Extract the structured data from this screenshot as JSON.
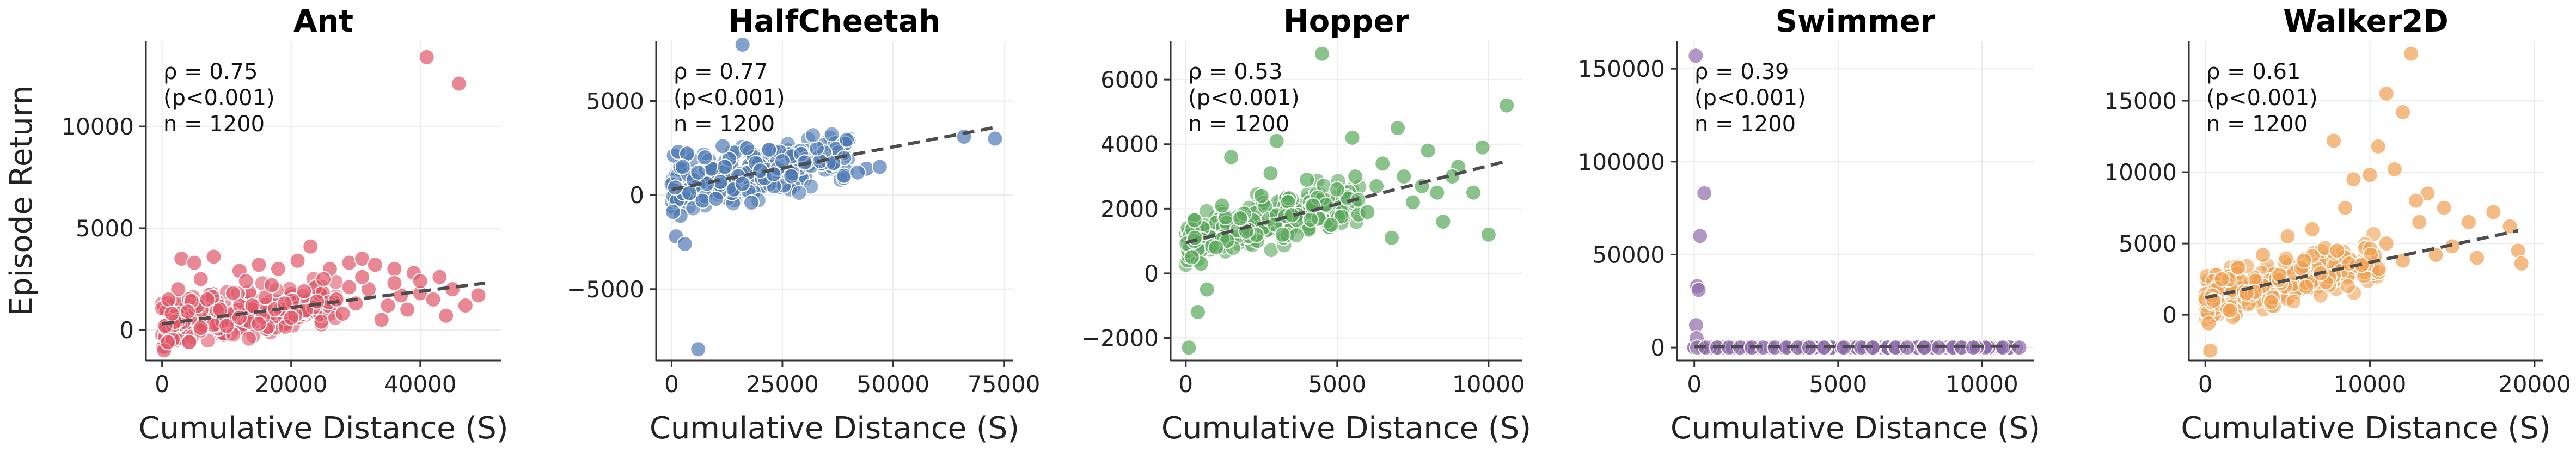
{
  "chart_data": [
    {
      "type": "scatter",
      "title": "Ant",
      "xlabel": "Cumulative Distance (S)",
      "ylabel": "Episode Return",
      "xlim": [
        -2500,
        52500
      ],
      "ylim": [
        -1500,
        14200
      ],
      "xticks": [
        0,
        20000,
        40000
      ],
      "xtick_labels": [
        "0",
        "20000",
        "40000"
      ],
      "yticks": [
        0,
        5000,
        10000
      ],
      "ytick_labels": [
        "0",
        "5000",
        "10000"
      ],
      "stats": [
        "ρ = 0.75",
        "(p<0.001)",
        "n = 1200"
      ],
      "color": "#e05566",
      "fit": [
        [
          0,
          300
        ],
        [
          50000,
          2300
        ]
      ],
      "points": [
        [
          41000,
          13400
        ],
        [
          46000,
          12100
        ],
        [
          300,
          -1000
        ],
        [
          900,
          -600
        ],
        [
          3000,
          3500
        ],
        [
          5000,
          3300
        ],
        [
          8000,
          3600
        ],
        [
          12000,
          2900
        ],
        [
          15000,
          3200
        ],
        [
          18000,
          3000
        ],
        [
          21000,
          3400
        ],
        [
          23000,
          4100
        ],
        [
          26000,
          3000
        ],
        [
          29000,
          3300
        ],
        [
          31000,
          3500
        ],
        [
          33000,
          3200
        ],
        [
          36000,
          3000
        ],
        [
          39000,
          2800
        ],
        [
          43000,
          2600
        ],
        [
          45000,
          2000
        ],
        [
          47000,
          1200
        ],
        [
          49000,
          1700
        ],
        [
          44000,
          700
        ],
        [
          34000,
          500
        ],
        [
          28000,
          800
        ],
        [
          20000,
          600
        ],
        [
          15000,
          300
        ],
        [
          10000,
          200
        ],
        [
          6000,
          100
        ],
        [
          2000,
          400
        ],
        [
          2500,
          2000
        ],
        [
          7000,
          1500
        ],
        [
          11000,
          1800
        ],
        [
          16000,
          1600
        ],
        [
          22000,
          1900
        ],
        [
          27000,
          1500
        ],
        [
          32000,
          2000
        ],
        [
          37000,
          1700
        ],
        [
          40000,
          1800
        ],
        [
          42000,
          1500
        ],
        [
          4000,
          900
        ],
        [
          9000,
          1000
        ],
        [
          14000,
          1200
        ],
        [
          19000,
          1300
        ],
        [
          24000,
          1400
        ],
        [
          30000,
          1300
        ],
        [
          35000,
          1200
        ],
        [
          38000,
          1000
        ],
        [
          1000,
          1500
        ],
        [
          13000,
          2400
        ],
        [
          25000,
          2500
        ],
        [
          17000,
          2200
        ],
        [
          31000,
          2600
        ],
        [
          36000,
          2300
        ],
        [
          500,
          200
        ],
        [
          1500,
          800
        ],
        [
          6000,
          2500
        ],
        [
          40000,
          2400
        ],
        [
          29000,
          2100
        ],
        [
          12000,
          600
        ]
      ]
    },
    {
      "type": "scatter",
      "title": "HalfCheetah",
      "xlabel": "Cumulative Distance (S)",
      "ylabel": "",
      "xlim": [
        -3500,
        77000
      ],
      "ylim": [
        -8800,
        8200
      ],
      "xticks": [
        0,
        25000,
        50000,
        75000
      ],
      "xtick_labels": [
        "0",
        "25000",
        "50000",
        "75000"
      ],
      "yticks": [
        -5000,
        0,
        5000
      ],
      "ytick_labels": [
        "−5000",
        "0",
        "5000"
      ],
      "stats": [
        "ρ = 0.77",
        "(p<0.001)",
        "n = 1200"
      ],
      "color": "#4e79b4",
      "fit": [
        [
          0,
          300
        ],
        [
          73000,
          3600
        ]
      ],
      "points": [
        [
          6000,
          -8200
        ],
        [
          73000,
          3000
        ],
        [
          66000,
          3100
        ],
        [
          44000,
          1400
        ],
        [
          47000,
          1500
        ],
        [
          42000,
          1200
        ],
        [
          27000,
          1000
        ],
        [
          25000,
          1800
        ],
        [
          16000,
          8000
        ],
        [
          1000,
          -2200
        ],
        [
          2000,
          -1100
        ],
        [
          3000,
          -2600
        ],
        [
          500,
          2100
        ],
        [
          1500,
          2300
        ],
        [
          3500,
          2200
        ],
        [
          5000,
          800
        ],
        [
          7000,
          -300
        ],
        [
          9000,
          1400
        ],
        [
          11000,
          700
        ],
        [
          13000,
          1900
        ],
        [
          15000,
          1000
        ],
        [
          17000,
          2500
        ],
        [
          19000,
          1700
        ],
        [
          21000,
          900
        ],
        [
          22000,
          2400
        ],
        [
          18000,
          -400
        ],
        [
          14000,
          300
        ],
        [
          10000,
          -200
        ],
        [
          8000,
          600
        ],
        [
          6000,
          1200
        ],
        [
          4000,
          100
        ],
        [
          12000,
          1500
        ],
        [
          16000,
          600
        ],
        [
          20000,
          1300
        ],
        [
          23000,
          1100
        ],
        [
          2500,
          1500
        ],
        [
          7500,
          2000
        ],
        [
          11500,
          2600
        ],
        [
          300,
          -900
        ],
        [
          800,
          400
        ]
      ]
    },
    {
      "type": "scatter",
      "title": "Hopper",
      "xlabel": "Cumulative Distance (S)",
      "ylabel": "",
      "xlim": [
        -500,
        11100
      ],
      "ylim": [
        -2700,
        7200
      ],
      "xticks": [
        0,
        5000,
        10000
      ],
      "xtick_labels": [
        "0",
        "5000",
        "10000"
      ],
      "yticks": [
        -2000,
        0,
        2000,
        4000,
        6000
      ],
      "ytick_labels": [
        "−2000",
        "0",
        "2000",
        "4000",
        "6000"
      ],
      "stats": [
        "ρ = 0.53",
        "(p<0.001)",
        "n = 1200"
      ],
      "color": "#59a85a",
      "fit": [
        [
          0,
          950
        ],
        [
          10500,
          3450
        ]
      ],
      "points": [
        [
          4500,
          6800
        ],
        [
          10600,
          5200
        ],
        [
          100,
          -2300
        ],
        [
          400,
          -1200
        ],
        [
          1500,
          3600
        ],
        [
          3000,
          4100
        ],
        [
          5500,
          4200
        ],
        [
          6500,
          3400
        ],
        [
          7000,
          4500
        ],
        [
          8000,
          3800
        ],
        [
          9000,
          3300
        ],
        [
          9500,
          2500
        ],
        [
          8500,
          1600
        ],
        [
          10000,
          1200
        ],
        [
          9800,
          3900
        ],
        [
          7500,
          2200
        ],
        [
          6000,
          1900
        ],
        [
          5000,
          2600
        ],
        [
          4000,
          2900
        ],
        [
          3500,
          1800
        ],
        [
          2500,
          2400
        ],
        [
          2000,
          1300
        ],
        [
          1000,
          800
        ],
        [
          500,
          300
        ],
        [
          300,
          1100
        ],
        [
          1200,
          2100
        ],
        [
          1800,
          1700
        ],
        [
          2800,
          3100
        ],
        [
          3200,
          1200
        ],
        [
          4200,
          2100
        ],
        [
          4800,
          1500
        ],
        [
          5600,
          3000
        ],
        [
          6300,
          2700
        ],
        [
          6800,
          1100
        ],
        [
          7200,
          3000
        ],
        [
          7800,
          2700
        ],
        [
          8300,
          2500
        ],
        [
          8800,
          3000
        ],
        [
          700,
          -500
        ],
        [
          200,
          500
        ]
      ]
    },
    {
      "type": "scatter",
      "title": "Swimmer",
      "xlabel": "Cumulative Distance (S)",
      "ylabel": "",
      "xlim": [
        -600,
        11800
      ],
      "ylim": [
        -7000,
        165000
      ],
      "xticks": [
        0,
        5000,
        10000
      ],
      "xtick_labels": [
        "0",
        "5000",
        "10000"
      ],
      "yticks": [
        0,
        50000,
        100000,
        150000
      ],
      "ytick_labels": [
        "0",
        "50000",
        "100000",
        "150000"
      ],
      "stats": [
        "ρ = 0.39",
        "(p<0.001)",
        "n = 1200"
      ],
      "color": "#8e6bab",
      "fit": [
        [
          0,
          500
        ],
        [
          11300,
          700
        ]
      ],
      "points": [
        [
          50,
          157000
        ],
        [
          350,
          83000
        ],
        [
          200,
          60000
        ],
        [
          100,
          33000
        ],
        [
          150,
          31000
        ],
        [
          60,
          12000
        ],
        [
          80,
          5000
        ],
        [
          100,
          0
        ],
        [
          400,
          0
        ],
        [
          800,
          0
        ],
        [
          1200,
          0
        ],
        [
          1600,
          0
        ],
        [
          2000,
          0
        ],
        [
          2400,
          0
        ],
        [
          2800,
          0
        ],
        [
          3200,
          0
        ],
        [
          3600,
          0
        ],
        [
          4000,
          0
        ],
        [
          4500,
          0
        ],
        [
          5200,
          0
        ],
        [
          5800,
          0
        ],
        [
          6200,
          0
        ],
        [
          7000,
          0
        ],
        [
          7400,
          0
        ],
        [
          8000,
          0
        ],
        [
          8500,
          0
        ],
        [
          9000,
          0
        ],
        [
          9300,
          0
        ],
        [
          9700,
          0
        ],
        [
          11300,
          0
        ]
      ]
    },
    {
      "type": "scatter",
      "title": "Walker2D",
      "xlabel": "Cumulative Distance (S)",
      "ylabel": "",
      "xlim": [
        -1000,
        20500
      ],
      "ylim": [
        -3200,
        19200
      ],
      "xticks": [
        0,
        10000,
        20000
      ],
      "xtick_labels": [
        "0",
        "10000",
        "20000"
      ],
      "yticks": [
        0,
        5000,
        10000,
        15000
      ],
      "ytick_labels": [
        "0",
        "5000",
        "10000",
        "15000"
      ],
      "stats": [
        "ρ = 0.61",
        "(p<0.001)",
        "n = 1200"
      ],
      "color": "#f0a050",
      "fit": [
        [
          0,
          1200
        ],
        [
          19000,
          5900
        ]
      ],
      "points": [
        [
          12500,
          18300
        ],
        [
          11000,
          15500
        ],
        [
          12000,
          14200
        ],
        [
          10500,
          11800
        ],
        [
          11500,
          10200
        ],
        [
          10000,
          9800
        ],
        [
          7800,
          12200
        ],
        [
          9000,
          9500
        ],
        [
          13500,
          8500
        ],
        [
          12800,
          8000
        ],
        [
          14500,
          7500
        ],
        [
          16000,
          6500
        ],
        [
          17500,
          7200
        ],
        [
          18500,
          6200
        ],
        [
          19000,
          4500
        ],
        [
          19200,
          3600
        ],
        [
          16500,
          4000
        ],
        [
          15000,
          4800
        ],
        [
          13000,
          6500
        ],
        [
          8500,
          7500
        ],
        [
          6500,
          6000
        ],
        [
          5000,
          5500
        ],
        [
          3500,
          4200
        ],
        [
          2000,
          3300
        ],
        [
          1000,
          2500
        ],
        [
          300,
          -2500
        ],
        [
          500,
          1000
        ],
        [
          1500,
          300
        ],
        [
          3000,
          1600
        ],
        [
          4500,
          2800
        ],
        [
          6000,
          3800
        ],
        [
          7000,
          2900
        ],
        [
          8000,
          4500
        ],
        [
          9500,
          3500
        ],
        [
          11000,
          5000
        ],
        [
          12000,
          3800
        ],
        [
          14000,
          4200
        ],
        [
          4000,
          900
        ],
        [
          2500,
          1500
        ],
        [
          200,
          -600
        ]
      ]
    }
  ]
}
